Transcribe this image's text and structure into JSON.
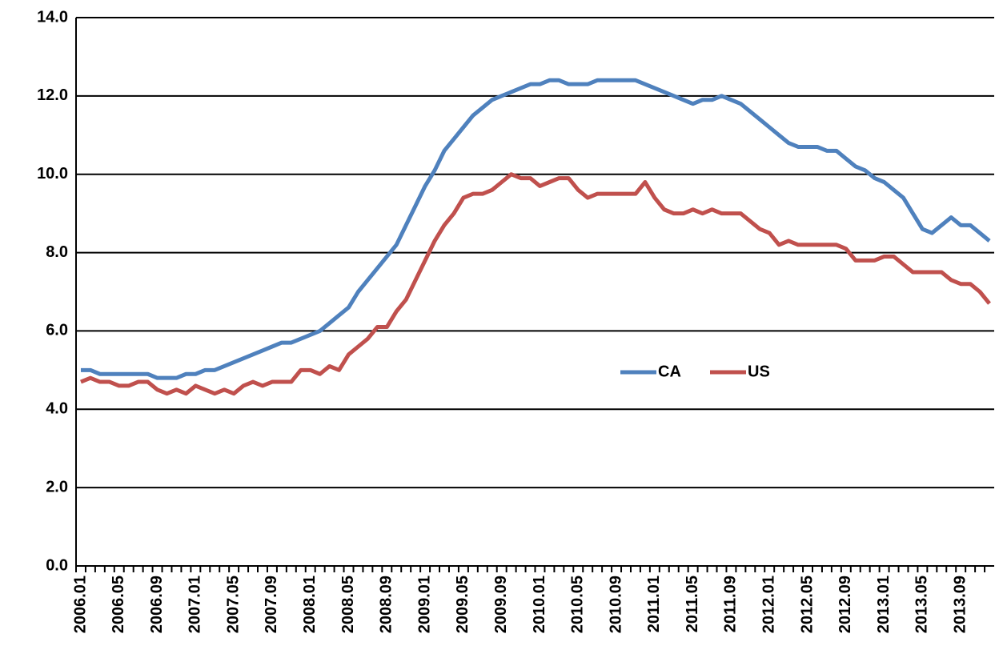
{
  "chart_data": {
    "type": "line",
    "categories": [
      "2006.01",
      null,
      null,
      null,
      "2006.05",
      null,
      null,
      null,
      "2006.09",
      null,
      null,
      null,
      "2007.01",
      null,
      null,
      null,
      "2007.05",
      null,
      null,
      null,
      "2007.09",
      null,
      null,
      null,
      "2008.01",
      null,
      null,
      null,
      "2008.05",
      null,
      null,
      null,
      "2008.09",
      null,
      null,
      null,
      "2009.01",
      null,
      null,
      null,
      "2009.05",
      null,
      null,
      null,
      "2009.09",
      null,
      null,
      null,
      "2010.01",
      null,
      null,
      null,
      "2010.05",
      null,
      null,
      null,
      "2010.09",
      null,
      null,
      null,
      "2011.01",
      null,
      null,
      null,
      "2011.05",
      null,
      null,
      null,
      "2011.09",
      null,
      null,
      null,
      "2012.01",
      null,
      null,
      null,
      "2012.05",
      null,
      null,
      null,
      "2012.09",
      null,
      null,
      null,
      "2013.01",
      null,
      null,
      null,
      "2013.05",
      null,
      null,
      null,
      "2013.09",
      null,
      null,
      null
    ],
    "series": [
      {
        "name": "CA",
        "color": "#4f81bd",
        "values": [
          5.0,
          5.0,
          4.9,
          4.9,
          4.9,
          4.9,
          4.9,
          4.9,
          4.8,
          4.8,
          4.8,
          4.9,
          4.9,
          5.0,
          5.0,
          5.1,
          5.2,
          5.3,
          5.4,
          5.5,
          5.6,
          5.7,
          5.7,
          5.8,
          5.9,
          6.0,
          6.2,
          6.4,
          6.6,
          7.0,
          7.3,
          7.6,
          7.9,
          8.2,
          8.7,
          9.2,
          9.7,
          10.1,
          10.6,
          10.9,
          11.2,
          11.5,
          11.7,
          11.9,
          12.0,
          12.1,
          12.2,
          12.3,
          12.3,
          12.4,
          12.4,
          12.3,
          12.3,
          12.3,
          12.4,
          12.4,
          12.4,
          12.4,
          12.4,
          12.3,
          12.2,
          12.1,
          12.0,
          11.9,
          11.8,
          11.9,
          11.9,
          12.0,
          11.9,
          11.8,
          11.6,
          11.4,
          11.2,
          11.0,
          10.8,
          10.7,
          10.7,
          10.7,
          10.6,
          10.6,
          10.4,
          10.2,
          10.1,
          9.9,
          9.8,
          9.6,
          9.4,
          9.0,
          8.6,
          8.5,
          8.7,
          8.9,
          8.7,
          8.7,
          8.5,
          8.3
        ]
      },
      {
        "name": "US",
        "color": "#c0504d",
        "values": [
          4.7,
          4.8,
          4.7,
          4.7,
          4.6,
          4.6,
          4.7,
          4.7,
          4.5,
          4.4,
          4.5,
          4.4,
          4.6,
          4.5,
          4.4,
          4.5,
          4.4,
          4.6,
          4.7,
          4.6,
          4.7,
          4.7,
          4.7,
          5.0,
          5.0,
          4.9,
          5.1,
          5.0,
          5.4,
          5.6,
          5.8,
          6.1,
          6.1,
          6.5,
          6.8,
          7.3,
          7.8,
          8.3,
          8.7,
          9.0,
          9.4,
          9.5,
          9.5,
          9.6,
          9.8,
          10.0,
          9.9,
          9.9,
          9.7,
          9.8,
          9.9,
          9.9,
          9.6,
          9.4,
          9.5,
          9.5,
          9.5,
          9.5,
          9.5,
          9.8,
          9.4,
          9.1,
          9.0,
          9.0,
          9.1,
          9.0,
          9.1,
          9.0,
          9.0,
          9.0,
          8.8,
          8.6,
          8.5,
          8.2,
          8.3,
          8.2,
          8.2,
          8.2,
          8.2,
          8.2,
          8.1,
          7.8,
          7.8,
          7.8,
          7.9,
          7.9,
          7.7,
          7.5,
          7.5,
          7.5,
          7.5,
          7.3,
          7.2,
          7.2,
          7.0,
          6.7
        ]
      }
    ],
    "ylim": [
      0,
      14
    ],
    "yticks": [
      {
        "value": 0,
        "label": "0.0"
      },
      {
        "value": 2,
        "label": "2.0"
      },
      {
        "value": 4,
        "label": "4.0"
      },
      {
        "value": 6,
        "label": "6.0"
      },
      {
        "value": 8,
        "label": "8.0"
      },
      {
        "value": 10,
        "label": "10.0"
      },
      {
        "value": 12,
        "label": "12.0"
      },
      {
        "value": 14,
        "label": "14.0"
      }
    ],
    "grid": true,
    "legend": "right"
  }
}
